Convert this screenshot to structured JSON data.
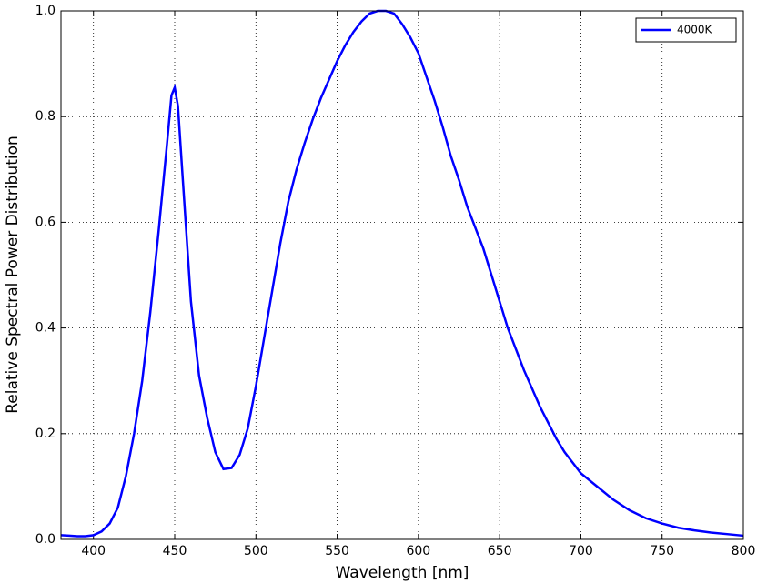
{
  "chart_data": {
    "type": "line",
    "x_label": "Wavelength [nm]",
    "y_label": "Relative Spectral Power Distribution",
    "x": [
      380,
      385,
      390,
      395,
      400,
      405,
      410,
      415,
      420,
      425,
      430,
      435,
      440,
      445,
      448,
      450,
      452,
      455,
      460,
      465,
      470,
      475,
      480,
      485,
      490,
      495,
      500,
      505,
      510,
      515,
      520,
      525,
      530,
      535,
      540,
      545,
      550,
      555,
      560,
      565,
      570,
      575,
      580,
      585,
      590,
      595,
      600,
      605,
      610,
      615,
      620,
      625,
      630,
      635,
      640,
      645,
      650,
      655,
      660,
      665,
      670,
      675,
      680,
      685,
      690,
      695,
      700,
      710,
      720,
      730,
      740,
      750,
      760,
      770,
      780,
      790,
      800
    ],
    "series": [
      {
        "name": "4000K",
        "color": "#0000ff",
        "values": [
          0.008,
          0.007,
          0.006,
          0.006,
          0.008,
          0.015,
          0.03,
          0.06,
          0.12,
          0.2,
          0.3,
          0.43,
          0.58,
          0.74,
          0.84,
          0.855,
          0.82,
          0.68,
          0.45,
          0.31,
          0.23,
          0.165,
          0.133,
          0.135,
          0.16,
          0.21,
          0.29,
          0.38,
          0.47,
          0.56,
          0.64,
          0.7,
          0.75,
          0.795,
          0.835,
          0.87,
          0.905,
          0.935,
          0.96,
          0.98,
          0.995,
          1.0,
          1.0,
          0.995,
          0.975,
          0.95,
          0.92,
          0.875,
          0.83,
          0.78,
          0.725,
          0.68,
          0.63,
          0.59,
          0.55,
          0.5,
          0.45,
          0.4,
          0.36,
          0.32,
          0.285,
          0.25,
          0.22,
          0.19,
          0.165,
          0.145,
          0.125,
          0.1,
          0.075,
          0.055,
          0.04,
          0.03,
          0.022,
          0.017,
          0.013,
          0.01,
          0.007
        ]
      }
    ],
    "xlim": [
      380,
      800
    ],
    "xticks": [
      400,
      450,
      500,
      550,
      600,
      650,
      700,
      750,
      800
    ],
    "ylim": [
      0,
      1
    ],
    "yticks": [
      {
        "value": 0,
        "label": "0.0"
      },
      0.2,
      0.4,
      0.6,
      0.8,
      {
        "value": 1,
        "label": "1.0"
      }
    ],
    "grid": true,
    "legend": "upper right"
  }
}
